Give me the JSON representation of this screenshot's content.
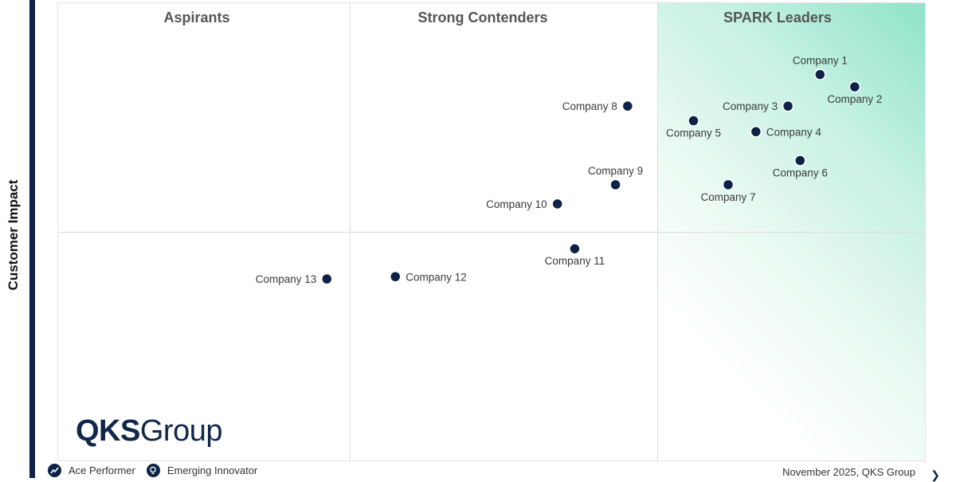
{
  "chart_data": {
    "type": "scatter",
    "title": "",
    "xlabel": "",
    "ylabel": "Customer Impact",
    "xlim": [
      0,
      100
    ],
    "ylim": [
      0,
      100
    ],
    "quadrant_titles": [
      "Aspirants",
      "Strong Contenders",
      "SPARK Leaders"
    ],
    "points": [
      {
        "name": "Company 1",
        "x": 87.9,
        "y": 84.4,
        "label_side": "above"
      },
      {
        "name": "Company 2",
        "x": 91.9,
        "y": 81.7,
        "label_side": "below"
      },
      {
        "name": "Company 3",
        "x": 84.2,
        "y": 77.5,
        "label_side": "left"
      },
      {
        "name": "Company 4",
        "x": 80.5,
        "y": 71.9,
        "label_side": "right"
      },
      {
        "name": "Company 5",
        "x": 73.3,
        "y": 74.3,
        "label_side": "below"
      },
      {
        "name": "Company 6",
        "x": 85.6,
        "y": 65.6,
        "label_side": "below"
      },
      {
        "name": "Company 7",
        "x": 77.3,
        "y": 60.3,
        "label_side": "below"
      },
      {
        "name": "Company 8",
        "x": 65.7,
        "y": 77.5,
        "label_side": "left"
      },
      {
        "name": "Company 9",
        "x": 64.3,
        "y": 60.3,
        "label_side": "above"
      },
      {
        "name": "Company 10",
        "x": 57.6,
        "y": 56.1,
        "label_side": "left"
      },
      {
        "name": "Company 11",
        "x": 59.6,
        "y": 46.3,
        "label_side": "below"
      },
      {
        "name": "Company 12",
        "x": 38.9,
        "y": 40.2,
        "label_side": "right"
      },
      {
        "name": "Company 13",
        "x": 31.0,
        "y": 39.7,
        "label_side": "left"
      }
    ],
    "quadrant_dividers": {
      "x": [
        33.5,
        69.0
      ],
      "y": 50.0
    }
  },
  "logo": {
    "bold": "QKS",
    "light": "Group"
  },
  "legend": [
    {
      "label": "Ace Performer",
      "icon": "trend-up-icon"
    },
    {
      "label": "Emerging Innovator",
      "icon": "lightbulb-icon"
    }
  ],
  "footer": {
    "note": "November 2025, QKS Group"
  },
  "colors": {
    "point": "#0d2246",
    "accent": "#8fe3c9",
    "bar": "#0d2246"
  }
}
